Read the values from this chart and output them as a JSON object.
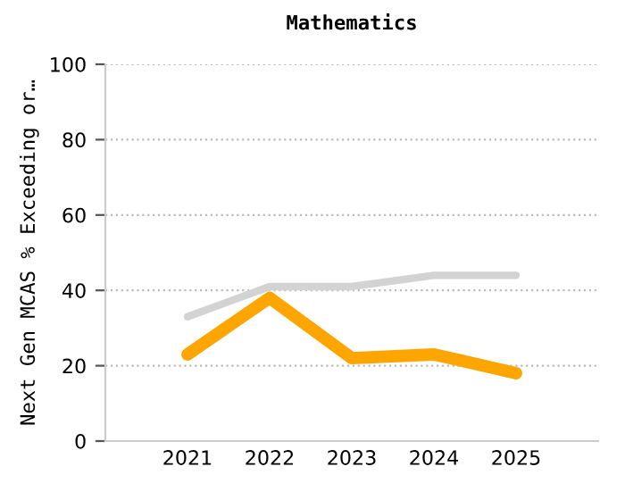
{
  "chart_data": {
    "type": "line",
    "title": "Mathematics",
    "ylabel": "Next Gen MCAS % Exceeding or…",
    "categories": [
      "2021",
      "2022",
      "2023",
      "2024",
      "2025"
    ],
    "series": [
      {
        "color": "#d3d3d3",
        "values": [
          33,
          41,
          41,
          44,
          44
        ]
      },
      {
        "color": "#ffa500",
        "values": [
          23,
          38,
          22,
          23,
          18
        ]
      }
    ],
    "ylim": [
      0,
      100
    ],
    "yticks": [
      0,
      20,
      40,
      60,
      80,
      100
    ],
    "grid": "y",
    "legend": false,
    "marker": "none",
    "line_style": "solid"
  }
}
